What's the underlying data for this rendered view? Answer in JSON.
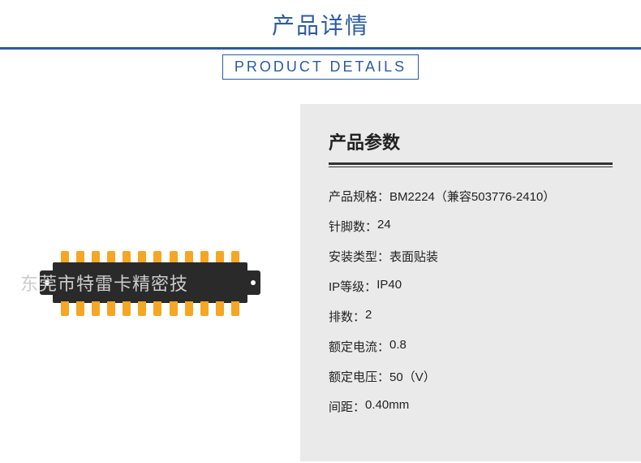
{
  "header": {
    "title_cn": "产品详情",
    "subtitle_en": "PRODUCT  DETAILS"
  },
  "product_image": {
    "watermark": "东莞市特雷卡精密技",
    "pin_count_per_row": 12,
    "body_color": "#2a2a2a",
    "pin_color": "#f5a623"
  },
  "specs": {
    "section_title": "产品参数",
    "rows": [
      {
        "label": "产品规格：",
        "value": "BM2224（兼容503776-2410）"
      },
      {
        "label": "针脚数：",
        "value": "24"
      },
      {
        "label": "安装类型：",
        "value": "表面贴装"
      },
      {
        "label": "IP等级：",
        "value": "IP40"
      },
      {
        "label": "排数：",
        "value": "2"
      },
      {
        "label": "额定电流：",
        "value": "0.8"
      },
      {
        "label": "额定电压：",
        "value": "50（V）"
      },
      {
        "label": "间距：",
        "value": "0.40mm"
      }
    ]
  },
  "colors": {
    "brand_blue": "#2c5b9e",
    "panel_gray": "#eaeaea",
    "text_dark": "#222222"
  }
}
